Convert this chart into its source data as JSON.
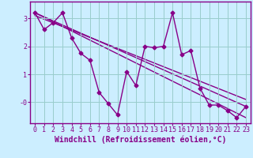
{
  "title": "",
  "xlabel": "Windchill (Refroidissement éolien,°C)",
  "ylabel": "",
  "background_color": "#cceeff",
  "plot_bg_color": "#cceeff",
  "line_color": "#880088",
  "grid_color": "#99cccc",
  "spine_color": "#880088",
  "xlim": [
    -0.5,
    23.5
  ],
  "ylim": [
    -0.75,
    3.6
  ],
  "yticks": [
    0,
    1,
    2,
    3
  ],
  "ytick_labels": [
    "-0",
    "1",
    "2",
    "3"
  ],
  "xticks": [
    0,
    1,
    2,
    3,
    4,
    5,
    6,
    7,
    8,
    9,
    10,
    11,
    12,
    13,
    14,
    15,
    16,
    17,
    18,
    19,
    20,
    21,
    22,
    23
  ],
  "series1_x": [
    0,
    1,
    2,
    3,
    4,
    5,
    6,
    7,
    8,
    9,
    10,
    11,
    12,
    13,
    14,
    15,
    16,
    17,
    18,
    19,
    20,
    21,
    22,
    23
  ],
  "series1_y": [
    3.2,
    2.6,
    2.85,
    3.2,
    2.3,
    1.75,
    1.5,
    0.35,
    -0.05,
    -0.45,
    1.1,
    0.6,
    2.0,
    1.95,
    2.0,
    3.2,
    1.7,
    1.85,
    0.5,
    -0.1,
    -0.1,
    -0.3,
    -0.55,
    -0.15
  ],
  "trend1_x": [
    0,
    23
  ],
  "trend1_y": [
    3.2,
    -0.15
  ],
  "trend2_x": [
    0,
    23
  ],
  "trend2_y": [
    3.1,
    0.1
  ],
  "trend3_x": [
    0,
    23
  ],
  "trend3_y": [
    3.2,
    -0.55
  ],
  "marker": "D",
  "markersize": 2.5,
  "linewidth": 1.0,
  "tick_fontsize": 6,
  "xlabel_fontsize": 7
}
